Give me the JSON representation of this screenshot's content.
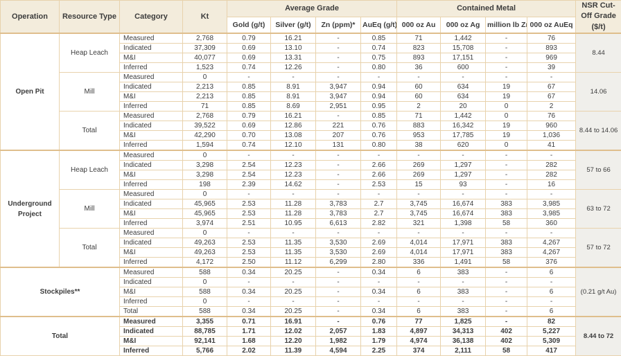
{
  "table": {
    "columns": {
      "operation": "Operation",
      "resource_type": "Resource Type",
      "category": "Category",
      "kt": "Kt",
      "avg_grade_group": "Average Grade",
      "contained_metal_group": "Contained Metal",
      "avg_grade_cols": [
        "Gold (g/t)",
        "Silver (g/t)",
        "Zn (ppm)*",
        "AuEq (g/t)"
      ],
      "contained_cols": [
        "000 oz Au",
        "000 oz Ag",
        "million lb Zn",
        "000 oz AuEq"
      ],
      "nsr": "NSR Cut-Off Grade ($/t)"
    },
    "sections": [
      {
        "operation": "Open Pit",
        "groups": [
          {
            "resource_type": "Heap Leach",
            "nsr": "8.44",
            "rows": [
              {
                "category": "Measured",
                "values": [
                  "2,768",
                  "0.79",
                  "16.21",
                  "-",
                  "0.85",
                  "71",
                  "1,442",
                  "-",
                  "76"
                ]
              },
              {
                "category": "Indicated",
                "values": [
                  "37,309",
                  "0.69",
                  "13.10",
                  "-",
                  "0.74",
                  "823",
                  "15,708",
                  "-",
                  "893"
                ]
              },
              {
                "category": "M&I",
                "values": [
                  "40,077",
                  "0.69",
                  "13.31",
                  "-",
                  "0.75",
                  "893",
                  "17,151",
                  "-",
                  "969"
                ]
              },
              {
                "category": "Inferred",
                "values": [
                  "1,523",
                  "0.74",
                  "12.26",
                  "-",
                  "0.80",
                  "36",
                  "600",
                  "-",
                  "39"
                ]
              }
            ]
          },
          {
            "resource_type": "Mill",
            "nsr": "14.06",
            "rows": [
              {
                "category": "Measured",
                "values": [
                  "0",
                  "-",
                  "-",
                  "-",
                  "-",
                  "-",
                  "-",
                  "-",
                  "-"
                ]
              },
              {
                "category": "Indicated",
                "values": [
                  "2,213",
                  "0.85",
                  "8.91",
                  "3,947",
                  "0.94",
                  "60",
                  "634",
                  "19",
                  "67"
                ]
              },
              {
                "category": "M&I",
                "values": [
                  "2,213",
                  "0.85",
                  "8.91",
                  "3,947",
                  "0.94",
                  "60",
                  "634",
                  "19",
                  "67"
                ]
              },
              {
                "category": "Inferred",
                "values": [
                  "71",
                  "0.85",
                  "8.69",
                  "2,951",
                  "0.95",
                  "2",
                  "20",
                  "0",
                  "2"
                ]
              }
            ]
          },
          {
            "resource_type": "Total",
            "nsr": "8.44 to 14.06",
            "rows": [
              {
                "category": "Measured",
                "values": [
                  "2,768",
                  "0.79",
                  "16.21",
                  "-",
                  "0.85",
                  "71",
                  "1,442",
                  "0",
                  "76"
                ]
              },
              {
                "category": "Indicated",
                "values": [
                  "39,522",
                  "0.69",
                  "12.86",
                  "221",
                  "0.76",
                  "883",
                  "16,342",
                  "19",
                  "960"
                ]
              },
              {
                "category": "M&I",
                "values": [
                  "42,290",
                  "0.70",
                  "13.08",
                  "207",
                  "0.76",
                  "953",
                  "17,785",
                  "19",
                  "1,036"
                ]
              },
              {
                "category": "Inferred",
                "values": [
                  "1,594",
                  "0.74",
                  "12.10",
                  "131",
                  "0.80",
                  "38",
                  "620",
                  "0",
                  "41"
                ]
              }
            ]
          }
        ]
      },
      {
        "operation": "Underground Project",
        "groups": [
          {
            "resource_type": "Heap Leach",
            "nsr": "57 to 66",
            "rows": [
              {
                "category": "Measured",
                "values": [
                  "0",
                  "-",
                  "-",
                  "-",
                  "-",
                  "-",
                  "-",
                  "-",
                  "-"
                ]
              },
              {
                "category": "Indicated",
                "values": [
                  "3,298",
                  "2.54",
                  "12.23",
                  "-",
                  "2.66",
                  "269",
                  "1,297",
                  "-",
                  "282"
                ]
              },
              {
                "category": "M&I",
                "values": [
                  "3,298",
                  "2.54",
                  "12.23",
                  "-",
                  "2.66",
                  "269",
                  "1,297",
                  "-",
                  "282"
                ]
              },
              {
                "category": "Inferred",
                "values": [
                  "198",
                  "2.39",
                  "14.62",
                  "-",
                  "2.53",
                  "15",
                  "93",
                  "-",
                  "16"
                ]
              }
            ]
          },
          {
            "resource_type": "Mill",
            "nsr": "63 to 72",
            "rows": [
              {
                "category": "Measured",
                "values": [
                  "0",
                  "-",
                  "-",
                  "-",
                  "-",
                  "-",
                  "-",
                  "-",
                  "-"
                ]
              },
              {
                "category": "Indicated",
                "values": [
                  "45,965",
                  "2.53",
                  "11.28",
                  "3,783",
                  "2.7",
                  "3,745",
                  "16,674",
                  "383",
                  "3,985"
                ]
              },
              {
                "category": "M&I",
                "values": [
                  "45,965",
                  "2.53",
                  "11.28",
                  "3,783",
                  "2.7",
                  "3,745",
                  "16,674",
                  "383",
                  "3,985"
                ]
              },
              {
                "category": "Inferred",
                "values": [
                  "3,974",
                  "2.51",
                  "10.95",
                  "6,613",
                  "2.82",
                  "321",
                  "1,398",
                  "58",
                  "360"
                ]
              }
            ]
          },
          {
            "resource_type": "Total",
            "nsr": "57 to 72",
            "rows": [
              {
                "category": "Measured",
                "values": [
                  "0",
                  "-",
                  "-",
                  "-",
                  "-",
                  "-",
                  "-",
                  "-",
                  "-"
                ]
              },
              {
                "category": "Indicated",
                "values": [
                  "49,263",
                  "2.53",
                  "11.35",
                  "3,530",
                  "2.69",
                  "4,014",
                  "17,971",
                  "383",
                  "4,267"
                ]
              },
              {
                "category": "M&I",
                "values": [
                  "49,263",
                  "2.53",
                  "11.35",
                  "3,530",
                  "2.69",
                  "4,014",
                  "17,971",
                  "383",
                  "4,267"
                ]
              },
              {
                "category": "Inferred",
                "values": [
                  "4,172",
                  "2.50",
                  "11.12",
                  "6,299",
                  "2.80",
                  "336",
                  "1,491",
                  "58",
                  "376"
                ]
              }
            ]
          }
        ]
      },
      {
        "operation": "Stockpiles**",
        "span_two_cols": true,
        "groups": [
          {
            "resource_type": null,
            "nsr": "(0.21 g/t Au)",
            "rows": [
              {
                "category": "Measured",
                "values": [
                  "588",
                  "0.34",
                  "20.25",
                  "-",
                  "0.34",
                  "6",
                  "383",
                  "-",
                  "6"
                ]
              },
              {
                "category": "Indicated",
                "values": [
                  "0",
                  "-",
                  "-",
                  "-",
                  "-",
                  "-",
                  "-",
                  "-",
                  "-"
                ]
              },
              {
                "category": "M&I",
                "values": [
                  "588",
                  "0.34",
                  "20.25",
                  "-",
                  "0.34",
                  "6",
                  "383",
                  "-",
                  "6"
                ]
              },
              {
                "category": "Inferred",
                "values": [
                  "0",
                  "-",
                  "-",
                  "-",
                  "-",
                  "-",
                  "-",
                  "-",
                  "-"
                ]
              },
              {
                "category": "Total",
                "values": [
                  "588",
                  "0.34",
                  "20.25",
                  "-",
                  "0.34",
                  "6",
                  "383",
                  "-",
                  "6"
                ]
              }
            ]
          }
        ]
      },
      {
        "operation": "Total",
        "span_two_cols": true,
        "bold": true,
        "groups": [
          {
            "resource_type": null,
            "nsr": "8.44 to 72",
            "rows": [
              {
                "category": "Measured",
                "values": [
                  "3,355",
                  "0.71",
                  "16.91",
                  "-",
                  "0.76",
                  "77",
                  "1,825",
                  "-",
                  "82"
                ]
              },
              {
                "category": "Indicated",
                "values": [
                  "88,785",
                  "1.71",
                  "12.02",
                  "2,057",
                  "1.83",
                  "4,897",
                  "34,313",
                  "402",
                  "5,227"
                ]
              },
              {
                "category": "M&I",
                "values": [
                  "92,141",
                  "1.68",
                  "12.20",
                  "1,982",
                  "1.79",
                  "4,974",
                  "36,138",
                  "402",
                  "5,309"
                ]
              },
              {
                "category": "Inferred",
                "values": [
                  "5,766",
                  "2.02",
                  "11.39",
                  "4,594",
                  "2.25",
                  "374",
                  "2,111",
                  "58",
                  "417"
                ]
              }
            ]
          }
        ]
      }
    ],
    "colors": {
      "header_bg": "#f3ecdc",
      "border": "#e8d2ac",
      "border_strong": "#dfbe8c",
      "nsr_cell_bg": "#f0efeb",
      "text": "#3c3c3c"
    }
  }
}
